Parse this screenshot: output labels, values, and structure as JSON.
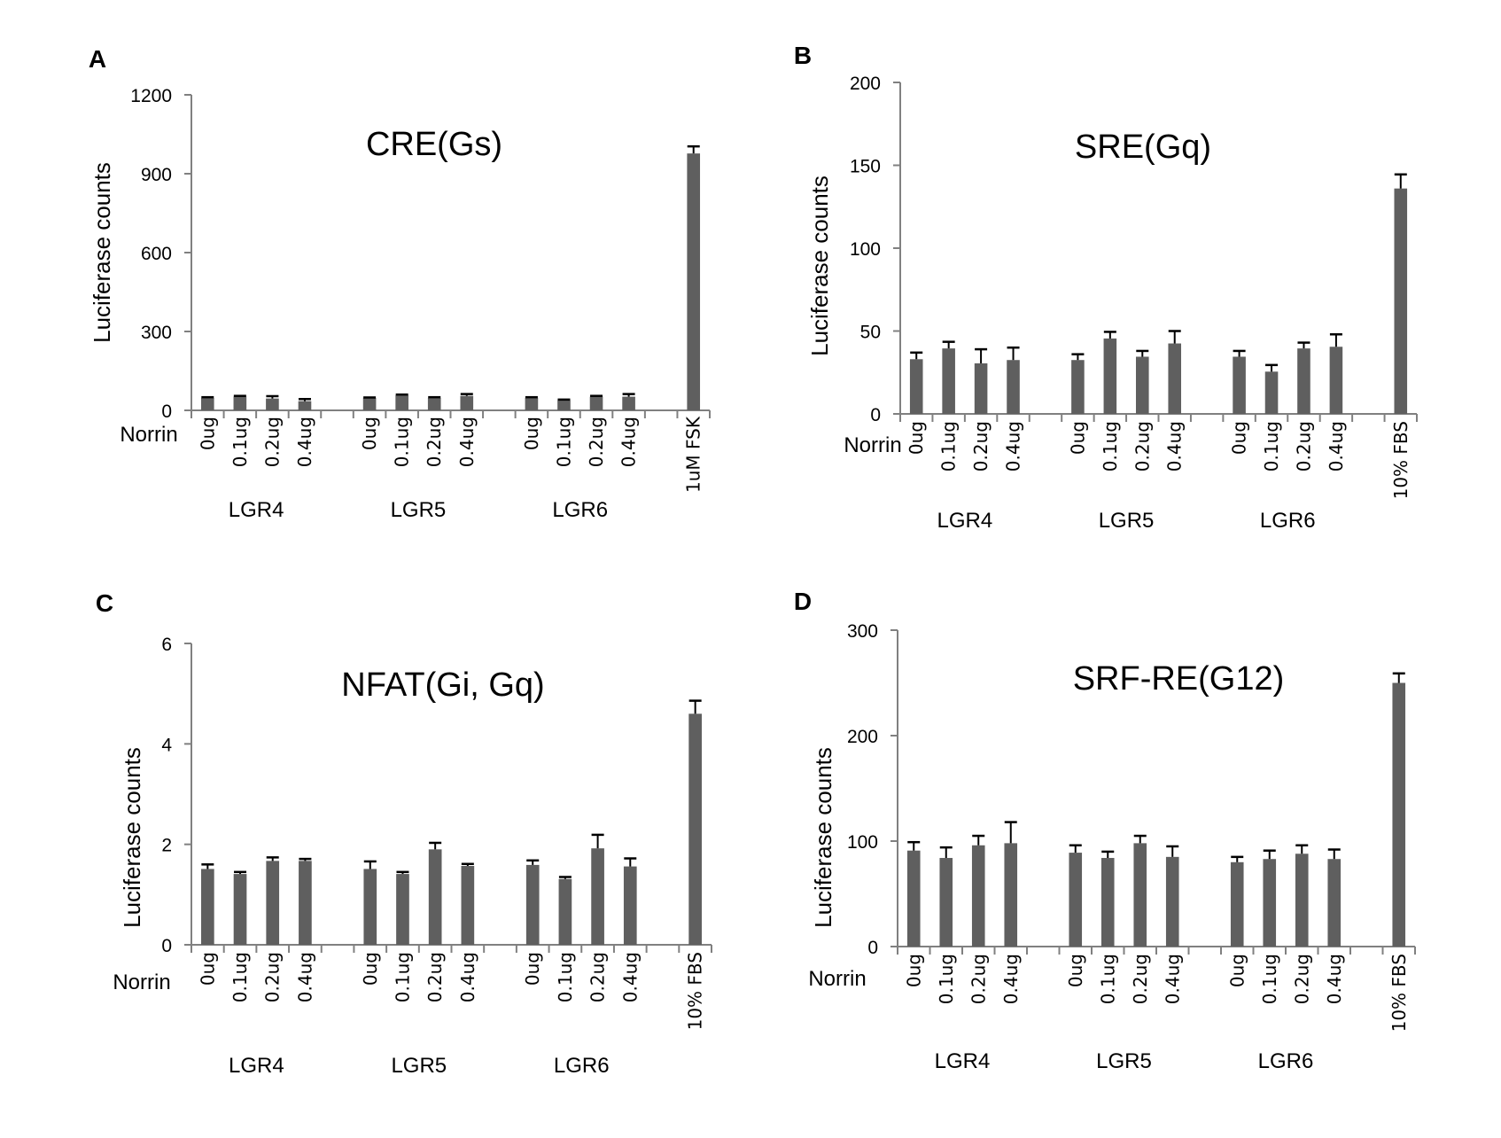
{
  "colors": {
    "bar": "#5f5f5f",
    "axis": "#808080",
    "error": "#000000",
    "text": "#000000"
  },
  "chart_data": [
    {
      "type": "bar",
      "panel": "A",
      "title": "CRE(Gs)",
      "ylabel": "Luciferase counts",
      "xlabel": "Norrin",
      "ylim": [
        0,
        1200
      ],
      "yticks": [
        0,
        300,
        600,
        900,
        1200
      ],
      "grid": false,
      "groups": [
        "LGR4",
        "LGR5",
        "LGR6"
      ],
      "dose_labels": [
        "0ug",
        "0.1ug",
        "0.2ug",
        "0.4ug"
      ],
      "control_label": "1uM FSK",
      "series": [
        {
          "name": "LGR4",
          "values": [
            47,
            52,
            45,
            35
          ],
          "error_upper": [
            50,
            55,
            54,
            43
          ]
        },
        {
          "name": "LGR5",
          "values": [
            47,
            57,
            47,
            55
          ],
          "error_upper": [
            49,
            60,
            50,
            62
          ]
        },
        {
          "name": "LGR6",
          "values": [
            47,
            38,
            52,
            52
          ],
          "error_upper": [
            50,
            41,
            55,
            62
          ]
        }
      ],
      "control": {
        "value": 977,
        "error_upper": 1004
      }
    },
    {
      "type": "bar",
      "panel": "B",
      "title": "SRE(Gq)",
      "ylabel": "Luciferase counts",
      "xlabel": "Norrin",
      "ylim": [
        0,
        200
      ],
      "yticks": [
        0,
        50,
        100,
        150,
        200
      ],
      "grid": false,
      "groups": [
        "LGR4",
        "LGR5",
        "LGR6"
      ],
      "dose_labels": [
        "0ug",
        "0.1ug",
        "0.2ug",
        "0.4ug"
      ],
      "control_label": "10% FBS",
      "series": [
        {
          "name": "LGR4",
          "values": [
            33,
            39.5,
            30.5,
            32.5
          ],
          "error_upper": [
            37,
            43.5,
            39,
            40
          ]
        },
        {
          "name": "LGR5",
          "values": [
            32.5,
            45.5,
            34.5,
            42.5
          ],
          "error_upper": [
            36,
            49.5,
            38,
            50
          ]
        },
        {
          "name": "LGR6",
          "values": [
            34.5,
            25.5,
            39.5,
            40.5
          ],
          "error_upper": [
            38,
            29.5,
            43,
            48
          ]
        }
      ],
      "control": {
        "value": 136,
        "error_upper": 144.5
      }
    },
    {
      "type": "bar",
      "panel": "C",
      "title": "NFAT(Gi, Gq)",
      "ylabel": "Luciferase counts",
      "xlabel": "Norrin",
      "ylim": [
        0,
        6
      ],
      "yticks": [
        0,
        2,
        4,
        6
      ],
      "grid": false,
      "groups": [
        "LGR4",
        "LGR5",
        "LGR6"
      ],
      "dose_labels": [
        "0ug",
        "0.1ug",
        "0.2ug",
        "0.4ug"
      ],
      "control_label": "10% FBS",
      "series": [
        {
          "name": "LGR4",
          "values": [
            1.51,
            1.41,
            1.67,
            1.67
          ],
          "error_upper": [
            1.6,
            1.45,
            1.74,
            1.71
          ]
        },
        {
          "name": "LGR5",
          "values": [
            1.51,
            1.41,
            1.9,
            1.57
          ],
          "error_upper": [
            1.66,
            1.45,
            2.03,
            1.61
          ]
        },
        {
          "name": "LGR6",
          "values": [
            1.59,
            1.31,
            1.92,
            1.56
          ],
          "error_upper": [
            1.68,
            1.35,
            2.19,
            1.72
          ]
        }
      ],
      "control": {
        "value": 4.6,
        "error_upper": 4.86
      }
    },
    {
      "type": "bar",
      "panel": "D",
      "title": "SRF-RE(G12)",
      "ylabel": "Luciferase counts",
      "xlabel": "Norrin",
      "ylim": [
        0,
        300
      ],
      "yticks": [
        0,
        100,
        200,
        300
      ],
      "grid": false,
      "groups": [
        "LGR4",
        "LGR5",
        "LGR6"
      ],
      "dose_labels": [
        "0ug",
        "0.1ug",
        "0.2ug",
        "0.4ug"
      ],
      "control_label": "10% FBS",
      "series": [
        {
          "name": "LGR4",
          "values": [
            91,
            84,
            96,
            98
          ],
          "error_upper": [
            99,
            94,
            105,
            118
          ]
        },
        {
          "name": "LGR5",
          "values": [
            89,
            84,
            98,
            85
          ],
          "error_upper": [
            96,
            90,
            105,
            95
          ]
        },
        {
          "name": "LGR6",
          "values": [
            80,
            83,
            88,
            83
          ],
          "error_upper": [
            85,
            91,
            96,
            92
          ]
        }
      ],
      "control": {
        "value": 250,
        "error_upper": 259
      }
    }
  ]
}
